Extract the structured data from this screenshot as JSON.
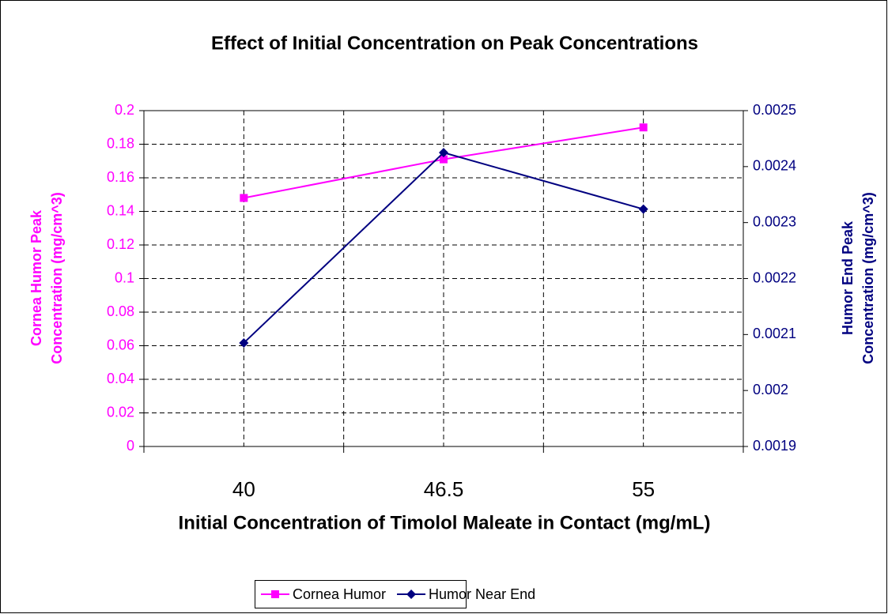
{
  "chart_data": {
    "type": "line",
    "title": "Effect of Initial Concentration on Peak Concentrations",
    "xlabel": "Initial Concentration of Timolol Maleate in Contact (mg/mL)",
    "ylabel": [
      "Cornea Humor Peak",
      "Concentration (mg/cm^3)"
    ],
    "y2label": [
      "Humor End Peak",
      "Concentration (mg/cm^3)"
    ],
    "categories": [
      "40",
      "46.5",
      "55"
    ],
    "series": [
      {
        "name": "Cornea Humor",
        "color": "#ff00ff",
        "marker": "square",
        "values": [
          0.148,
          0.171,
          0.19
        ]
      },
      {
        "name": "Humor Near End",
        "color": "#000080",
        "marker": "diamond",
        "axis": "y2",
        "values": [
          0.002085,
          0.002425,
          0.002324
        ]
      }
    ],
    "ylim": [
      0,
      0.2
    ],
    "yticks": [
      0,
      0.02,
      0.04,
      0.06,
      0.08,
      0.1,
      0.12,
      0.14,
      0.16,
      0.18,
      0.2
    ],
    "y2lim": [
      0.0019,
      0.0025
    ],
    "y2ticks": [
      0.0019,
      0.002,
      0.0021,
      0.0022,
      0.0023,
      0.0024,
      0.0025
    ],
    "grid": true,
    "legend": "bottom"
  }
}
